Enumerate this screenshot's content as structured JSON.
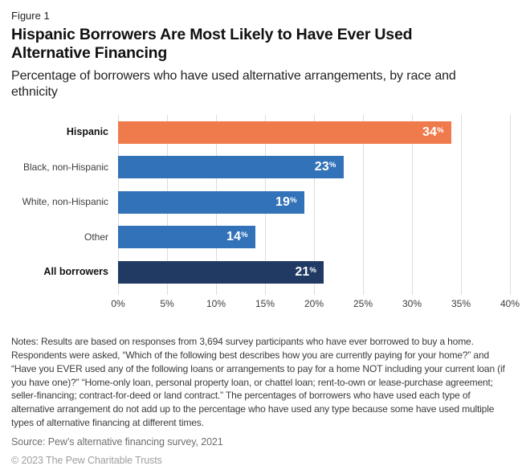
{
  "figure_label": "Figure 1",
  "title": "Hispanic Borrowers Are Most Likely to Have Ever Used Alternative Financing",
  "subtitle": "Percentage of borrowers who have used alternative arrangements, by race and ethnicity",
  "chart_data": {
    "type": "bar",
    "orientation": "horizontal",
    "categories": [
      "Hispanic",
      "Black, non-Hispanic",
      "White, non-Hispanic",
      "Other",
      "All borrowers"
    ],
    "values": [
      34,
      23,
      19,
      14,
      21
    ],
    "value_suffix": "%",
    "bold_categories": [
      "Hispanic",
      "All borrowers"
    ],
    "bar_colors": [
      "#EF7B4C",
      "#3272B9",
      "#3272B9",
      "#3272B9",
      "#203A63"
    ],
    "xlim": [
      0,
      40
    ],
    "x_ticks": [
      "0%",
      "5%",
      "10%",
      "15%",
      "20%",
      "25%",
      "30%",
      "35%",
      "40%"
    ],
    "grid": true,
    "gridline_color": "#dcdcdc",
    "legend": "none",
    "title": "Hispanic Borrowers Are Most Likely to Have Ever Used Alternative Financing",
    "xlabel": "",
    "ylabel": ""
  },
  "notes": "Notes: Results are based on responses from 3,694 survey participants who have ever borrowed to buy a home. Respondents were asked, “Which of the following best describes how you are currently paying for your home?” and “Have you EVER used any of the following loans or arrangements to pay for a home NOT including your current loan (if you have one)?” “Home-only loan, personal property loan, or chattel loan; rent-to-own or lease-purchase agreement; seller-financing; contract-for-deed or land contract.” The percentages of borrowers who have used each type of alternative arrangement do not add up to the percentage who have used any type because some have used multiple types of alternative financing at different times.",
  "source": "Source: Pew’s alternative financing survey, 2021",
  "copyright": "© 2023 The Pew Charitable Trusts"
}
